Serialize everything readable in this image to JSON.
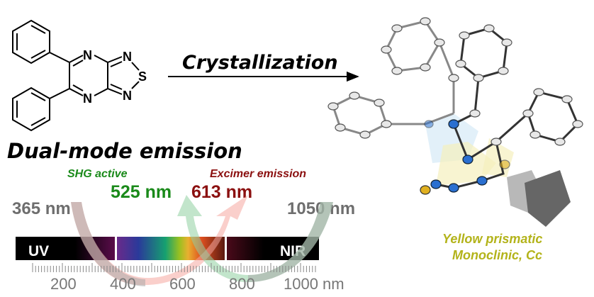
{
  "molecule": {
    "atoms": [
      "N",
      "N",
      "N",
      "S",
      "N"
    ]
  },
  "reaction_arrow": {
    "label": "Crystallization"
  },
  "headline": "Dual-mode emission",
  "emissions": {
    "shg": {
      "label": "SHG active",
      "wavelength": "525 nm",
      "color": "#1a8a1a"
    },
    "excimer": {
      "label": "Excimer emission",
      "wavelength": "613 nm",
      "color": "#8b1010"
    }
  },
  "excitation": {
    "left": "365 nm",
    "right": "1050 nm",
    "color": "#6e6e6e"
  },
  "spectrum": {
    "regions": [
      "UV",
      "NIR"
    ],
    "ticks": [
      "200",
      "400",
      "600",
      "800",
      "1000 nm"
    ]
  },
  "crystal": {
    "habit": "Yellow prismatic",
    "system": "Monoclinic, Cc",
    "color": "#b3b31a"
  }
}
